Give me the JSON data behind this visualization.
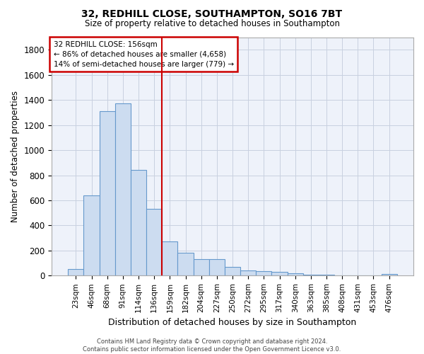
{
  "title_line1": "32, REDHILL CLOSE, SOUTHAMPTON, SO16 7BT",
  "title_line2": "Size of property relative to detached houses in Southampton",
  "xlabel": "Distribution of detached houses by size in Southampton",
  "ylabel": "Number of detached properties",
  "categories": [
    "23sqm",
    "46sqm",
    "68sqm",
    "91sqm",
    "114sqm",
    "136sqm",
    "159sqm",
    "182sqm",
    "204sqm",
    "227sqm",
    "250sqm",
    "272sqm",
    "295sqm",
    "317sqm",
    "340sqm",
    "363sqm",
    "385sqm",
    "408sqm",
    "431sqm",
    "453sqm",
    "476sqm"
  ],
  "values": [
    50,
    640,
    1310,
    1375,
    845,
    530,
    275,
    185,
    130,
    130,
    70,
    40,
    35,
    30,
    20,
    10,
    10,
    0,
    0,
    0,
    15
  ],
  "bar_color": "#ccdcf0",
  "bar_edge_color": "#6699cc",
  "vline_x_index": 6.0,
  "vline_color": "#cc0000",
  "annotation_text_line1": "32 REDHILL CLOSE: 156sqm",
  "annotation_text_line2": "← 86% of detached houses are smaller (4,658)",
  "annotation_text_line3": "14% of semi-detached houses are larger (779) →",
  "annotation_box_facecolor": "#ffffff",
  "annotation_box_edgecolor": "#cc0000",
  "ylim": [
    0,
    1900
  ],
  "yticks": [
    0,
    200,
    400,
    600,
    800,
    1000,
    1200,
    1400,
    1600,
    1800
  ],
  "grid_color": "#c8d0e0",
  "background_color": "#eef2fa",
  "footer_line1": "Contains HM Land Registry data © Crown copyright and database right 2024.",
  "footer_line2": "Contains public sector information licensed under the Open Government Licence v3.0."
}
